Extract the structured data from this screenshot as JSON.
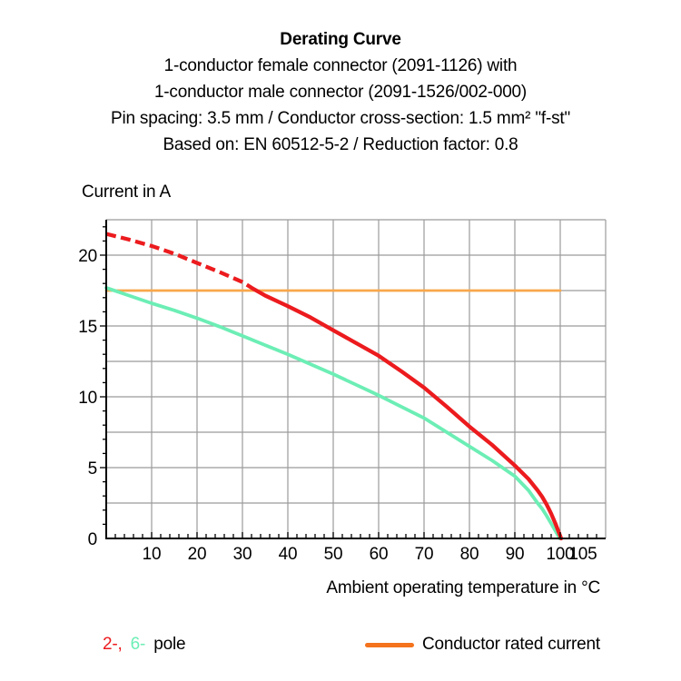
{
  "header": {
    "title": "Derating Curve",
    "subtitle_lines": [
      "1-conductor female connector (2091-1126) with",
      "1-conductor male connector (2091-1526/002-000)",
      "Pin spacing: 3.5 mm / Conductor cross-section: 1.5 mm² \"f-st\"",
      "Based on: EN 60512-5-2 / Reduction factor: 0.8"
    ]
  },
  "chart_data": {
    "type": "line",
    "title": "Derating Curve",
    "xlabel": "Ambient operating temperature in °C",
    "ylabel": "Current in A",
    "xlim": [
      0,
      110
    ],
    "ylim": [
      0,
      22.5
    ],
    "x_ticks": [
      10,
      20,
      30,
      40,
      50,
      60,
      70,
      80,
      90,
      100,
      105
    ],
    "y_ticks": [
      0,
      5,
      10,
      15,
      20
    ],
    "grid": {
      "x_step": 10,
      "y_step": 2.5,
      "color": "#9B9B9B",
      "on": true
    },
    "axis_color": "#000000",
    "minor_tick_x_step": 2,
    "minor_tick_y_step": 1,
    "legend_position": "bottom",
    "series": [
      {
        "name": "2-pole",
        "color": "#EC1B1E",
        "width": 4.3,
        "dashed_until_x": 32.5,
        "dash_pattern": "11 5.5",
        "points": [
          [
            0,
            21.5
          ],
          [
            5,
            21.1
          ],
          [
            10,
            20.65
          ],
          [
            15,
            20.1
          ],
          [
            20,
            19.45
          ],
          [
            25,
            18.8
          ],
          [
            30,
            18.1
          ],
          [
            32.5,
            17.6
          ],
          [
            35,
            17.15
          ],
          [
            40,
            16.4
          ],
          [
            45,
            15.6
          ],
          [
            50,
            14.7
          ],
          [
            55,
            13.8
          ],
          [
            60,
            12.9
          ],
          [
            65,
            11.8
          ],
          [
            70,
            10.65
          ],
          [
            75,
            9.3
          ],
          [
            80,
            7.9
          ],
          [
            85,
            6.6
          ],
          [
            90,
            5.15
          ],
          [
            93,
            4.2
          ],
          [
            95,
            3.4
          ],
          [
            96,
            2.95
          ],
          [
            97,
            2.4
          ],
          [
            98,
            1.75
          ],
          [
            99,
            1.0
          ],
          [
            100.2,
            0
          ]
        ]
      },
      {
        "name": "6-pole",
        "color": "#6CEEB5",
        "width": 3.8,
        "points": [
          [
            0,
            17.7
          ],
          [
            5,
            17.15
          ],
          [
            10,
            16.6
          ],
          [
            15,
            16.1
          ],
          [
            20,
            15.55
          ],
          [
            25,
            14.95
          ],
          [
            30,
            14.3
          ],
          [
            35,
            13.65
          ],
          [
            40,
            13.0
          ],
          [
            45,
            12.3
          ],
          [
            50,
            11.6
          ],
          [
            55,
            10.85
          ],
          [
            60,
            10.1
          ],
          [
            65,
            9.3
          ],
          [
            70,
            8.5
          ],
          [
            75,
            7.5
          ],
          [
            80,
            6.5
          ],
          [
            85,
            5.5
          ],
          [
            90,
            4.4
          ],
          [
            93,
            3.4
          ],
          [
            95,
            2.5
          ],
          [
            96,
            2.1
          ],
          [
            97,
            1.6
          ],
          [
            98,
            1.05
          ],
          [
            99,
            0.5
          ],
          [
            99.9,
            0
          ]
        ]
      },
      {
        "name": "Conductor rated current",
        "color": "#F9A64A",
        "width": 2.8,
        "points": [
          [
            0,
            17.5
          ],
          [
            100,
            17.5
          ]
        ]
      }
    ]
  },
  "legend": {
    "pole_red": "2-,",
    "pole_green": "6-",
    "pole_suffix": "pole",
    "rated_label": "Conductor rated current",
    "rated_swatch_color": "#F4731C",
    "red": "#EC1B1E",
    "green": "#6CEEB5"
  }
}
